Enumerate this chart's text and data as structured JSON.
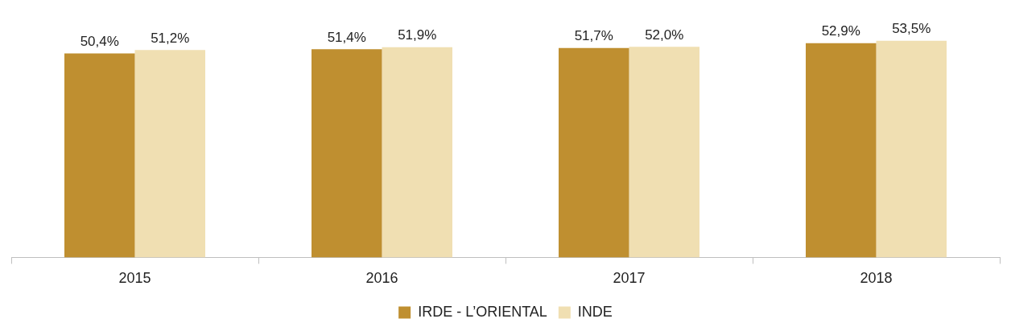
{
  "chart_data": {
    "type": "bar",
    "categories": [
      "2015",
      "2016",
      "2017",
      "2018"
    ],
    "series": [
      {
        "name": "IRDE - L’ORIENTAL",
        "color": "#bf8f30",
        "values": [
          50.4,
          51.4,
          51.7,
          52.9
        ],
        "value_labels": [
          "50,4%",
          "51,4%",
          "51,7%",
          "52,9%"
        ]
      },
      {
        "name": "INDE",
        "color": "#f0dfb2",
        "values": [
          51.2,
          51.9,
          52.0,
          53.5
        ],
        "value_labels": [
          "51,2%",
          "51,9%",
          "52,0%",
          "53,5%"
        ]
      }
    ],
    "tick_labels": "x",
    "grid": false,
    "legend": "bottom"
  }
}
